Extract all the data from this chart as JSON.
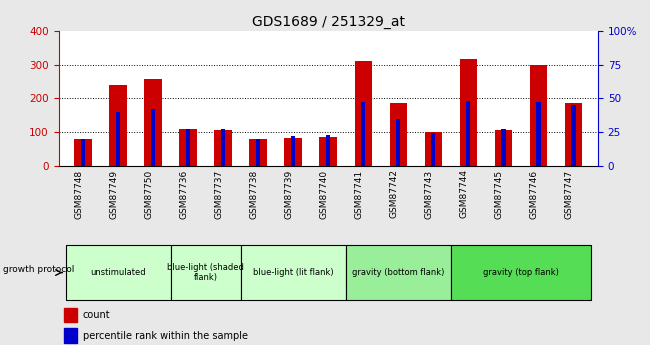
{
  "title": "GDS1689 / 251329_at",
  "samples": [
    "GSM87748",
    "GSM87749",
    "GSM87750",
    "GSM87736",
    "GSM87737",
    "GSM87738",
    "GSM87739",
    "GSM87740",
    "GSM87741",
    "GSM87742",
    "GSM87743",
    "GSM87744",
    "GSM87745",
    "GSM87746",
    "GSM87747"
  ],
  "counts": [
    80,
    240,
    258,
    110,
    105,
    80,
    82,
    85,
    312,
    185,
    100,
    318,
    105,
    300,
    185
  ],
  "percentiles": [
    20,
    40,
    42,
    27,
    27,
    20,
    22,
    23,
    47,
    35,
    24,
    48,
    27,
    47,
    45
  ],
  "groups": [
    {
      "label": "unstimulated",
      "start": 0,
      "end": 3,
      "color": "#ccffcc"
    },
    {
      "label": "blue-light (shaded\nflank)",
      "start": 3,
      "end": 5,
      "color": "#ccffcc"
    },
    {
      "label": "blue-light (lit flank)",
      "start": 5,
      "end": 8,
      "color": "#ccffcc"
    },
    {
      "label": "gravity (bottom flank)",
      "start": 8,
      "end": 11,
      "color": "#99ee99"
    },
    {
      "label": "gravity (top flank)",
      "start": 11,
      "end": 15,
      "color": "#55dd55"
    }
  ],
  "ylim_left": [
    0,
    400
  ],
  "ylim_right": [
    0,
    100
  ],
  "yticks_left": [
    0,
    100,
    200,
    300,
    400
  ],
  "yticks_right": [
    0,
    25,
    50,
    75,
    100
  ],
  "ytick_labels_right": [
    "0",
    "25",
    "50",
    "75",
    "100%"
  ],
  "count_color": "#cc0000",
  "percentile_color": "#0000cc",
  "bg_color": "#e8e8e8",
  "plot_bg": "#ffffff",
  "left_axis_color": "#cc0000",
  "right_axis_color": "#0000cc",
  "growth_protocol_label": "growth protocol",
  "legend_count": "count",
  "legend_percentile": "percentile rank within the sample"
}
